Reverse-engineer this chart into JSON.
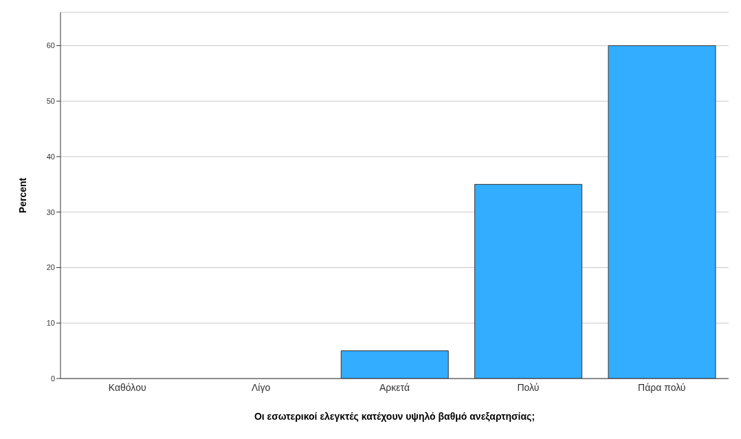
{
  "chart_data": {
    "type": "bar",
    "xlabel": "Οι εσωτερικοί ελεγκτές κατέχουν υψηλό βαθμό ανεξαρτησίας;",
    "ylabel": "Percent",
    "categories": [
      "Καθόλου",
      "Λίγο",
      "Αρκετά",
      "Πολύ",
      "Πάρα πολύ"
    ],
    "values": [
      0,
      0,
      5,
      35,
      60
    ],
    "color": "#33adff",
    "ylim": [
      0,
      66
    ],
    "yticks": [
      0,
      10,
      20,
      30,
      40,
      50,
      60
    ],
    "grid": "y"
  }
}
